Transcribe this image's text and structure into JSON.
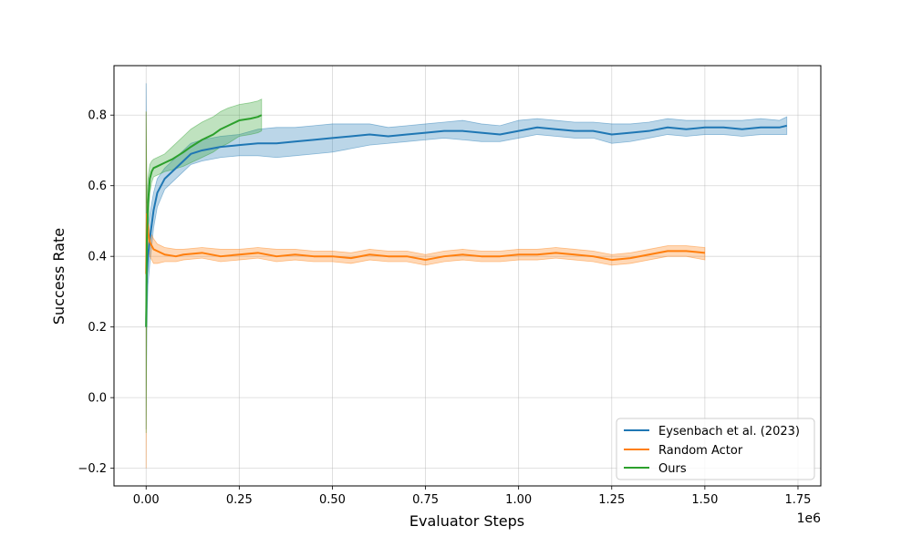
{
  "chart_data": {
    "type": "line",
    "title": "",
    "xlabel": "Evaluator Steps",
    "ylabel": "Success Rate",
    "x_offset_label": "1e6",
    "xlim": [
      -0.08625,
      1.81125
    ],
    "ylim": [
      -0.25,
      0.94
    ],
    "xticks": [
      0.0,
      0.25,
      0.5,
      0.75,
      1.0,
      1.25,
      1.5,
      1.75
    ],
    "xtick_labels": [
      "0.00",
      "0.25",
      "0.50",
      "0.75",
      "1.00",
      "1.25",
      "1.50",
      "1.75"
    ],
    "yticks": [
      -0.2,
      0.0,
      0.2,
      0.4,
      0.6,
      0.8
    ],
    "ytick_labels": [
      "−0.2",
      "0.0",
      "0.2",
      "0.4",
      "0.6",
      "0.8"
    ],
    "grid": true,
    "legend_position": "bottom-right",
    "series": [
      {
        "name": "Eysenbach et al. (2023)",
        "color": "#1f77b4",
        "x": [
          0.0,
          0.002,
          0.005,
          0.01,
          0.02,
          0.03,
          0.05,
          0.07,
          0.1,
          0.12,
          0.15,
          0.2,
          0.25,
          0.3,
          0.35,
          0.4,
          0.45,
          0.5,
          0.55,
          0.6,
          0.65,
          0.7,
          0.75,
          0.8,
          0.85,
          0.9,
          0.95,
          1.0,
          1.05,
          1.1,
          1.15,
          1.2,
          1.25,
          1.3,
          1.35,
          1.4,
          1.45,
          1.5,
          1.55,
          1.6,
          1.65,
          1.7,
          1.72
        ],
        "y": [
          0.2,
          0.35,
          0.4,
          0.45,
          0.53,
          0.58,
          0.62,
          0.64,
          0.67,
          0.69,
          0.7,
          0.71,
          0.715,
          0.72,
          0.72,
          0.725,
          0.73,
          0.735,
          0.74,
          0.745,
          0.74,
          0.745,
          0.75,
          0.755,
          0.755,
          0.75,
          0.745,
          0.755,
          0.765,
          0.76,
          0.755,
          0.755,
          0.745,
          0.75,
          0.755,
          0.765,
          0.76,
          0.765,
          0.765,
          0.76,
          0.765,
          0.765,
          0.77
        ],
        "upper": [
          0.89,
          0.5,
          0.48,
          0.52,
          0.58,
          0.62,
          0.65,
          0.67,
          0.7,
          0.72,
          0.73,
          0.74,
          0.745,
          0.76,
          0.765,
          0.765,
          0.77,
          0.775,
          0.775,
          0.775,
          0.765,
          0.77,
          0.775,
          0.78,
          0.785,
          0.775,
          0.77,
          0.785,
          0.79,
          0.785,
          0.78,
          0.78,
          0.775,
          0.775,
          0.78,
          0.79,
          0.785,
          0.785,
          0.785,
          0.785,
          0.79,
          0.785,
          0.795
        ],
        "lower": [
          -0.09,
          0.2,
          0.32,
          0.38,
          0.48,
          0.54,
          0.59,
          0.61,
          0.64,
          0.66,
          0.67,
          0.68,
          0.685,
          0.685,
          0.68,
          0.685,
          0.69,
          0.695,
          0.705,
          0.715,
          0.72,
          0.725,
          0.73,
          0.735,
          0.73,
          0.725,
          0.725,
          0.735,
          0.745,
          0.74,
          0.735,
          0.735,
          0.72,
          0.725,
          0.735,
          0.745,
          0.74,
          0.745,
          0.745,
          0.74,
          0.745,
          0.745,
          0.745
        ]
      },
      {
        "name": "Random Actor",
        "color": "#ff7f0e",
        "x": [
          0.0,
          0.002,
          0.005,
          0.01,
          0.015,
          0.02,
          0.03,
          0.05,
          0.08,
          0.1,
          0.15,
          0.2,
          0.25,
          0.3,
          0.35,
          0.4,
          0.45,
          0.5,
          0.55,
          0.6,
          0.65,
          0.7,
          0.75,
          0.8,
          0.85,
          0.9,
          0.95,
          1.0,
          1.05,
          1.1,
          1.15,
          1.2,
          1.25,
          1.3,
          1.35,
          1.4,
          1.45,
          1.5
        ],
        "y": [
          0.35,
          0.52,
          0.47,
          0.44,
          0.43,
          0.42,
          0.415,
          0.405,
          0.4,
          0.405,
          0.41,
          0.4,
          0.405,
          0.41,
          0.4,
          0.405,
          0.4,
          0.4,
          0.395,
          0.405,
          0.4,
          0.4,
          0.39,
          0.4,
          0.405,
          0.4,
          0.4,
          0.405,
          0.405,
          0.41,
          0.405,
          0.4,
          0.39,
          0.395,
          0.405,
          0.415,
          0.415,
          0.41
        ],
        "upper": [
          0.81,
          0.54,
          0.5,
          0.47,
          0.46,
          0.45,
          0.435,
          0.425,
          0.42,
          0.42,
          0.425,
          0.42,
          0.42,
          0.425,
          0.42,
          0.42,
          0.415,
          0.415,
          0.41,
          0.42,
          0.415,
          0.415,
          0.405,
          0.415,
          0.42,
          0.415,
          0.415,
          0.42,
          0.42,
          0.425,
          0.42,
          0.415,
          0.405,
          0.41,
          0.42,
          0.43,
          0.43,
          0.425
        ],
        "lower": [
          -0.2,
          0.48,
          0.43,
          0.4,
          0.39,
          0.38,
          0.38,
          0.385,
          0.385,
          0.39,
          0.395,
          0.385,
          0.39,
          0.395,
          0.385,
          0.39,
          0.385,
          0.385,
          0.38,
          0.39,
          0.385,
          0.385,
          0.375,
          0.385,
          0.39,
          0.385,
          0.385,
          0.39,
          0.39,
          0.395,
          0.39,
          0.385,
          0.375,
          0.38,
          0.39,
          0.4,
          0.4,
          0.39
        ]
      },
      {
        "name": "Ours",
        "color": "#2ca02c",
        "x": [
          0.0,
          0.002,
          0.005,
          0.01,
          0.015,
          0.02,
          0.03,
          0.05,
          0.07,
          0.1,
          0.12,
          0.15,
          0.18,
          0.2,
          0.22,
          0.25,
          0.28,
          0.3,
          0.31
        ],
        "y": [
          0.2,
          0.45,
          0.55,
          0.62,
          0.64,
          0.65,
          0.655,
          0.665,
          0.675,
          0.695,
          0.71,
          0.73,
          0.745,
          0.76,
          0.77,
          0.785,
          0.79,
          0.795,
          0.8
        ],
        "upper": [
          0.81,
          0.55,
          0.62,
          0.66,
          0.67,
          0.675,
          0.68,
          0.69,
          0.71,
          0.74,
          0.76,
          0.78,
          0.795,
          0.81,
          0.82,
          0.83,
          0.835,
          0.84,
          0.845
        ],
        "lower": [
          -0.1,
          0.35,
          0.48,
          0.58,
          0.61,
          0.625,
          0.63,
          0.64,
          0.645,
          0.655,
          0.665,
          0.68,
          0.695,
          0.71,
          0.72,
          0.74,
          0.745,
          0.75,
          0.755
        ]
      }
    ]
  }
}
